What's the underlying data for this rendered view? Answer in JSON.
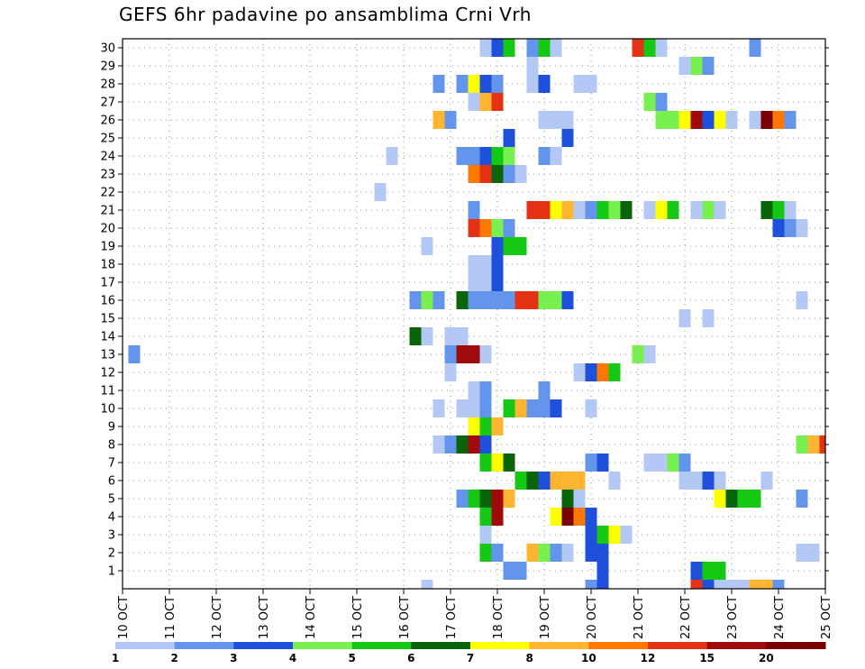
{
  "chart_data": {
    "type": "heatmap",
    "title": "GEFS 6hr padavine po ansamblima Crni Vrh",
    "xlabel": "",
    "ylabel": "",
    "x_tick_labels": [
      "10 OCT",
      "11 OCT",
      "12 OCT",
      "13 OCT",
      "14 OCT",
      "15 OCT",
      "16 OCT",
      "17 OCT",
      "18 OCT",
      "19 OCT",
      "20 OCT",
      "21 OCT",
      "22 OCT",
      "23 OCT",
      "24 OCT",
      "25 OCT"
    ],
    "x_start_day": 10,
    "x_end_day": 25,
    "y_tick_labels": [
      1,
      2,
      3,
      4,
      5,
      6,
      7,
      8,
      9,
      10,
      11,
      12,
      13,
      14,
      15,
      16,
      17,
      18,
      19,
      20,
      21,
      22,
      23,
      24,
      25,
      26,
      27,
      28,
      29,
      30
    ],
    "ylim": [
      0,
      30
    ],
    "grid": true,
    "color_levels": [
      1,
      2,
      3,
      4,
      5,
      6,
      7,
      8,
      10,
      12,
      15,
      20
    ],
    "color_scale": [
      "#b4c8f5",
      "#6495ed",
      "#1e50dc",
      "#78f050",
      "#14c814",
      "#0a640a",
      "#ffff00",
      "#ffb432",
      "#ff7800",
      "#e63214",
      "#a00a0a",
      "#780000"
    ],
    "legend_labels": [
      "1",
      "2",
      "3",
      "4",
      "5",
      "6",
      "7",
      "8",
      "10",
      "12",
      "15",
      "20"
    ],
    "legend_position": "bottom",
    "value_units": "color class index 1-12",
    "cells": [
      {
        "member": 30,
        "day": 17.75,
        "class": 1
      },
      {
        "member": 30,
        "day": 18.0,
        "class": 3
      },
      {
        "member": 30,
        "day": 18.25,
        "class": 5
      },
      {
        "member": 30,
        "day": 18.75,
        "class": 2
      },
      {
        "member": 30,
        "day": 19.0,
        "class": 5
      },
      {
        "member": 30,
        "day": 19.25,
        "class": 1
      },
      {
        "member": 30,
        "day": 21.0,
        "class": 10
      },
      {
        "member": 30,
        "day": 21.25,
        "class": 5
      },
      {
        "member": 30,
        "day": 21.5,
        "class": 1
      },
      {
        "member": 30,
        "day": 23.5,
        "class": 2
      },
      {
        "member": 29,
        "day": 18.75,
        "class": 1
      },
      {
        "member": 29,
        "day": 22.0,
        "class": 1
      },
      {
        "member": 29,
        "day": 22.25,
        "class": 4
      },
      {
        "member": 29,
        "day": 22.5,
        "class": 2
      },
      {
        "member": 28,
        "day": 16.75,
        "class": 2
      },
      {
        "member": 28,
        "day": 17.25,
        "class": 2
      },
      {
        "member": 28,
        "day": 17.5,
        "class": 7
      },
      {
        "member": 28,
        "day": 17.75,
        "class": 3
      },
      {
        "member": 28,
        "day": 18.0,
        "class": 2
      },
      {
        "member": 28,
        "day": 18.75,
        "class": 1
      },
      {
        "member": 28,
        "day": 19.0,
        "class": 3
      },
      {
        "member": 28,
        "day": 19.75,
        "class": 1
      },
      {
        "member": 28,
        "day": 20.0,
        "class": 1
      },
      {
        "member": 27,
        "day": 17.5,
        "class": 1
      },
      {
        "member": 27,
        "day": 17.75,
        "class": 8
      },
      {
        "member": 27,
        "day": 18.0,
        "class": 10
      },
      {
        "member": 27,
        "day": 21.25,
        "class": 4
      },
      {
        "member": 27,
        "day": 21.5,
        "class": 2
      },
      {
        "member": 26,
        "day": 16.75,
        "class": 8
      },
      {
        "member": 26,
        "day": 17.0,
        "class": 2
      },
      {
        "member": 26,
        "day": 19.0,
        "class": 1
      },
      {
        "member": 26,
        "day": 19.25,
        "class": 1
      },
      {
        "member": 26,
        "day": 19.5,
        "class": 1
      },
      {
        "member": 26,
        "day": 21.5,
        "class": 4
      },
      {
        "member": 26,
        "day": 21.75,
        "class": 4
      },
      {
        "member": 26,
        "day": 22.0,
        "class": 7
      },
      {
        "member": 26,
        "day": 22.25,
        "class": 11
      },
      {
        "member": 26,
        "day": 22.5,
        "class": 3
      },
      {
        "member": 26,
        "day": 22.75,
        "class": 7
      },
      {
        "member": 26,
        "day": 23.0,
        "class": 1
      },
      {
        "member": 26,
        "day": 23.5,
        "class": 1
      },
      {
        "member": 26,
        "day": 23.75,
        "class": 12
      },
      {
        "member": 26,
        "day": 24.0,
        "class": 9
      },
      {
        "member": 26,
        "day": 24.25,
        "class": 2
      },
      {
        "member": 25,
        "day": 18.25,
        "class": 3
      },
      {
        "member": 25,
        "day": 19.5,
        "class": 3
      },
      {
        "member": 24,
        "day": 15.75,
        "class": 1
      },
      {
        "member": 24,
        "day": 17.25,
        "class": 2
      },
      {
        "member": 24,
        "day": 17.5,
        "class": 2
      },
      {
        "member": 24,
        "day": 17.75,
        "class": 3
      },
      {
        "member": 24,
        "day": 18.0,
        "class": 5
      },
      {
        "member": 24,
        "day": 18.25,
        "class": 4
      },
      {
        "member": 24,
        "day": 19.0,
        "class": 2
      },
      {
        "member": 24,
        "day": 19.25,
        "class": 1
      },
      {
        "member": 23,
        "day": 17.5,
        "class": 9
      },
      {
        "member": 23,
        "day": 17.75,
        "class": 10
      },
      {
        "member": 23,
        "day": 18.0,
        "class": 6
      },
      {
        "member": 23,
        "day": 18.25,
        "class": 2
      },
      {
        "member": 23,
        "day": 18.5,
        "class": 1
      },
      {
        "member": 22,
        "day": 15.5,
        "class": 1
      },
      {
        "member": 21,
        "day": 17.5,
        "class": 2
      },
      {
        "member": 21,
        "day": 18.75,
        "class": 10
      },
      {
        "member": 21,
        "day": 19.0,
        "class": 10
      },
      {
        "member": 21,
        "day": 19.25,
        "class": 7
      },
      {
        "member": 21,
        "day": 19.5,
        "class": 8
      },
      {
        "member": 21,
        "day": 19.75,
        "class": 1
      },
      {
        "member": 21,
        "day": 20.0,
        "class": 2
      },
      {
        "member": 21,
        "day": 20.25,
        "class": 5
      },
      {
        "member": 21,
        "day": 20.5,
        "class": 4
      },
      {
        "member": 21,
        "day": 20.75,
        "class": 6
      },
      {
        "member": 21,
        "day": 21.25,
        "class": 1
      },
      {
        "member": 21,
        "day": 21.5,
        "class": 7
      },
      {
        "member": 21,
        "day": 21.75,
        "class": 5
      },
      {
        "member": 21,
        "day": 22.25,
        "class": 1
      },
      {
        "member": 21,
        "day": 22.5,
        "class": 4
      },
      {
        "member": 21,
        "day": 22.75,
        "class": 1
      },
      {
        "member": 21,
        "day": 23.75,
        "class": 6
      },
      {
        "member": 21,
        "day": 24.0,
        "class": 5
      },
      {
        "member": 21,
        "day": 24.25,
        "class": 1
      },
      {
        "member": 20,
        "day": 17.5,
        "class": 10
      },
      {
        "member": 20,
        "day": 17.75,
        "class": 9
      },
      {
        "member": 20,
        "day": 18.0,
        "class": 4
      },
      {
        "member": 20,
        "day": 18.25,
        "class": 2
      },
      {
        "member": 20,
        "day": 24.0,
        "class": 3
      },
      {
        "member": 20,
        "day": 24.25,
        "class": 2
      },
      {
        "member": 20,
        "day": 24.5,
        "class": 1
      },
      {
        "member": 19,
        "day": 16.5,
        "class": 1
      },
      {
        "member": 19,
        "day": 18.0,
        "class": 3
      },
      {
        "member": 19,
        "day": 18.25,
        "class": 5
      },
      {
        "member": 19,
        "day": 18.5,
        "class": 5
      },
      {
        "member": 18,
        "day": 17.5,
        "class": 1
      },
      {
        "member": 18,
        "day": 17.75,
        "class": 1
      },
      {
        "member": 18,
        "day": 18.0,
        "class": 3
      },
      {
        "member": 17,
        "day": 17.5,
        "class": 1
      },
      {
        "member": 17,
        "day": 17.75,
        "class": 1
      },
      {
        "member": 17,
        "day": 18.0,
        "class": 3
      },
      {
        "member": 16,
        "day": 16.25,
        "class": 2
      },
      {
        "member": 16,
        "day": 16.5,
        "class": 4
      },
      {
        "member": 16,
        "day": 16.75,
        "class": 2
      },
      {
        "member": 16,
        "day": 17.25,
        "class": 6
      },
      {
        "member": 16,
        "day": 17.5,
        "class": 2
      },
      {
        "member": 16,
        "day": 17.75,
        "class": 2
      },
      {
        "member": 16,
        "day": 18.0,
        "class": 2
      },
      {
        "member": 16,
        "day": 18.25,
        "class": 2
      },
      {
        "member": 16,
        "day": 18.5,
        "class": 10
      },
      {
        "member": 16,
        "day": 18.75,
        "class": 10
      },
      {
        "member": 16,
        "day": 19.0,
        "class": 4
      },
      {
        "member": 16,
        "day": 19.25,
        "class": 4
      },
      {
        "member": 16,
        "day": 19.5,
        "class": 3
      },
      {
        "member": 16,
        "day": 24.5,
        "class": 1
      },
      {
        "member": 15,
        "day": 22.0,
        "class": 1
      },
      {
        "member": 15,
        "day": 22.5,
        "class": 1
      },
      {
        "member": 14,
        "day": 16.25,
        "class": 6
      },
      {
        "member": 14,
        "day": 16.5,
        "class": 1
      },
      {
        "member": 14,
        "day": 17.0,
        "class": 1
      },
      {
        "member": 14,
        "day": 17.25,
        "class": 1
      },
      {
        "member": 13,
        "day": 10.25,
        "class": 2
      },
      {
        "member": 13,
        "day": 17.0,
        "class": 2
      },
      {
        "member": 13,
        "day": 17.25,
        "class": 11
      },
      {
        "member": 13,
        "day": 17.5,
        "class": 11
      },
      {
        "member": 13,
        "day": 17.75,
        "class": 1
      },
      {
        "member": 13,
        "day": 21.0,
        "class": 4
      },
      {
        "member": 13,
        "day": 21.25,
        "class": 1
      },
      {
        "member": 12,
        "day": 17.0,
        "class": 1
      },
      {
        "member": 12,
        "day": 19.75,
        "class": 1
      },
      {
        "member": 12,
        "day": 20.0,
        "class": 3
      },
      {
        "member": 12,
        "day": 20.25,
        "class": 9
      },
      {
        "member": 12,
        "day": 20.5,
        "class": 5
      },
      {
        "member": 11,
        "day": 17.5,
        "class": 1
      },
      {
        "member": 11,
        "day": 17.75,
        "class": 2
      },
      {
        "member": 11,
        "day": 19.0,
        "class": 2
      },
      {
        "member": 10,
        "day": 16.75,
        "class": 1
      },
      {
        "member": 10,
        "day": 17.25,
        "class": 1
      },
      {
        "member": 10,
        "day": 17.5,
        "class": 1
      },
      {
        "member": 10,
        "day": 17.75,
        "class": 2
      },
      {
        "member": 10,
        "day": 18.25,
        "class": 5
      },
      {
        "member": 10,
        "day": 18.5,
        "class": 8
      },
      {
        "member": 10,
        "day": 18.75,
        "class": 2
      },
      {
        "member": 10,
        "day": 19.0,
        "class": 2
      },
      {
        "member": 10,
        "day": 19.25,
        "class": 3
      },
      {
        "member": 10,
        "day": 20.0,
        "class": 1
      },
      {
        "member": 9,
        "day": 17.5,
        "class": 7
      },
      {
        "member": 9,
        "day": 17.75,
        "class": 5
      },
      {
        "member": 9,
        "day": 18.0,
        "class": 8
      },
      {
        "member": 8,
        "day": 16.75,
        "class": 1
      },
      {
        "member": 8,
        "day": 17.0,
        "class": 2
      },
      {
        "member": 8,
        "day": 17.25,
        "class": 6
      },
      {
        "member": 8,
        "day": 17.5,
        "class": 11
      },
      {
        "member": 8,
        "day": 17.75,
        "class": 3
      },
      {
        "member": 8,
        "day": 24.5,
        "class": 4
      },
      {
        "member": 8,
        "day": 24.75,
        "class": 8
      },
      {
        "member": 8,
        "day": 25.0,
        "class": 10
      },
      {
        "member": 7,
        "day": 17.75,
        "class": 5
      },
      {
        "member": 7,
        "day": 18.0,
        "class": 7
      },
      {
        "member": 7,
        "day": 18.25,
        "class": 6
      },
      {
        "member": 7,
        "day": 20.0,
        "class": 2
      },
      {
        "member": 7,
        "day": 20.25,
        "class": 3
      },
      {
        "member": 7,
        "day": 21.25,
        "class": 1
      },
      {
        "member": 7,
        "day": 21.5,
        "class": 1
      },
      {
        "member": 7,
        "day": 21.75,
        "class": 4
      },
      {
        "member": 7,
        "day": 22.0,
        "class": 2
      },
      {
        "member": 6,
        "day": 18.5,
        "class": 5
      },
      {
        "member": 6,
        "day": 18.75,
        "class": 6
      },
      {
        "member": 6,
        "day": 19.0,
        "class": 3
      },
      {
        "member": 6,
        "day": 19.25,
        "class": 8
      },
      {
        "member": 6,
        "day": 19.5,
        "class": 8
      },
      {
        "member": 6,
        "day": 19.75,
        "class": 8
      },
      {
        "member": 6,
        "day": 20.5,
        "class": 1
      },
      {
        "member": 6,
        "day": 22.0,
        "class": 1
      },
      {
        "member": 6,
        "day": 22.25,
        "class": 1
      },
      {
        "member": 6,
        "day": 22.5,
        "class": 3
      },
      {
        "member": 6,
        "day": 22.75,
        "class": 1
      },
      {
        "member": 6,
        "day": 23.75,
        "class": 1
      },
      {
        "member": 5,
        "day": 17.25,
        "class": 2
      },
      {
        "member": 5,
        "day": 17.5,
        "class": 5
      },
      {
        "member": 5,
        "day": 17.75,
        "class": 6
      },
      {
        "member": 5,
        "day": 18.0,
        "class": 11
      },
      {
        "member": 5,
        "day": 18.25,
        "class": 8
      },
      {
        "member": 5,
        "day": 19.5,
        "class": 6
      },
      {
        "member": 5,
        "day": 19.75,
        "class": 1
      },
      {
        "member": 5,
        "day": 22.75,
        "class": 7
      },
      {
        "member": 5,
        "day": 23.0,
        "class": 6
      },
      {
        "member": 5,
        "day": 23.25,
        "class": 5
      },
      {
        "member": 5,
        "day": 23.5,
        "class": 5
      },
      {
        "member": 5,
        "day": 24.5,
        "class": 2
      },
      {
        "member": 4,
        "day": 17.75,
        "class": 5
      },
      {
        "member": 4,
        "day": 18.0,
        "class": 11
      },
      {
        "member": 4,
        "day": 19.25,
        "class": 7
      },
      {
        "member": 4,
        "day": 19.5,
        "class": 12
      },
      {
        "member": 4,
        "day": 19.75,
        "class": 9
      },
      {
        "member": 4,
        "day": 20.0,
        "class": 3
      },
      {
        "member": 3,
        "day": 17.75,
        "class": 1
      },
      {
        "member": 3,
        "day": 20.0,
        "class": 3
      },
      {
        "member": 3,
        "day": 20.25,
        "class": 5
      },
      {
        "member": 3,
        "day": 20.5,
        "class": 7
      },
      {
        "member": 3,
        "day": 20.75,
        "class": 1
      },
      {
        "member": 2,
        "day": 17.75,
        "class": 5
      },
      {
        "member": 2,
        "day": 18.0,
        "class": 2
      },
      {
        "member": 2,
        "day": 18.75,
        "class": 8
      },
      {
        "member": 2,
        "day": 19.0,
        "class": 4
      },
      {
        "member": 2,
        "day": 19.25,
        "class": 2
      },
      {
        "member": 2,
        "day": 19.5,
        "class": 1
      },
      {
        "member": 2,
        "day": 20.0,
        "class": 3
      },
      {
        "member": 2,
        "day": 20.25,
        "class": 3
      },
      {
        "member": 2,
        "day": 24.5,
        "class": 1
      },
      {
        "member": 2,
        "day": 24.75,
        "class": 1
      },
      {
        "member": 1,
        "day": 18.25,
        "class": 2
      },
      {
        "member": 1,
        "day": 18.5,
        "class": 2
      },
      {
        "member": 1,
        "day": 20.25,
        "class": 3
      },
      {
        "member": 1,
        "day": 22.25,
        "class": 3
      },
      {
        "member": 1,
        "day": 22.5,
        "class": 5
      },
      {
        "member": 1,
        "day": 22.75,
        "class": 5
      },
      {
        "member": 0,
        "day": 16.5,
        "class": 1
      },
      {
        "member": 0,
        "day": 20.0,
        "class": 2
      },
      {
        "member": 0,
        "day": 20.25,
        "class": 3
      },
      {
        "member": 0,
        "day": 22.25,
        "class": 10
      },
      {
        "member": 0,
        "day": 22.5,
        "class": 3
      },
      {
        "member": 0,
        "day": 22.75,
        "class": 1
      },
      {
        "member": 0,
        "day": 23.0,
        "class": 1
      },
      {
        "member": 0,
        "day": 23.25,
        "class": 1
      },
      {
        "member": 0,
        "day": 23.5,
        "class": 8
      },
      {
        "member": 0,
        "day": 23.75,
        "class": 8
      },
      {
        "member": 0,
        "day": 24.0,
        "class": 2
      }
    ]
  }
}
